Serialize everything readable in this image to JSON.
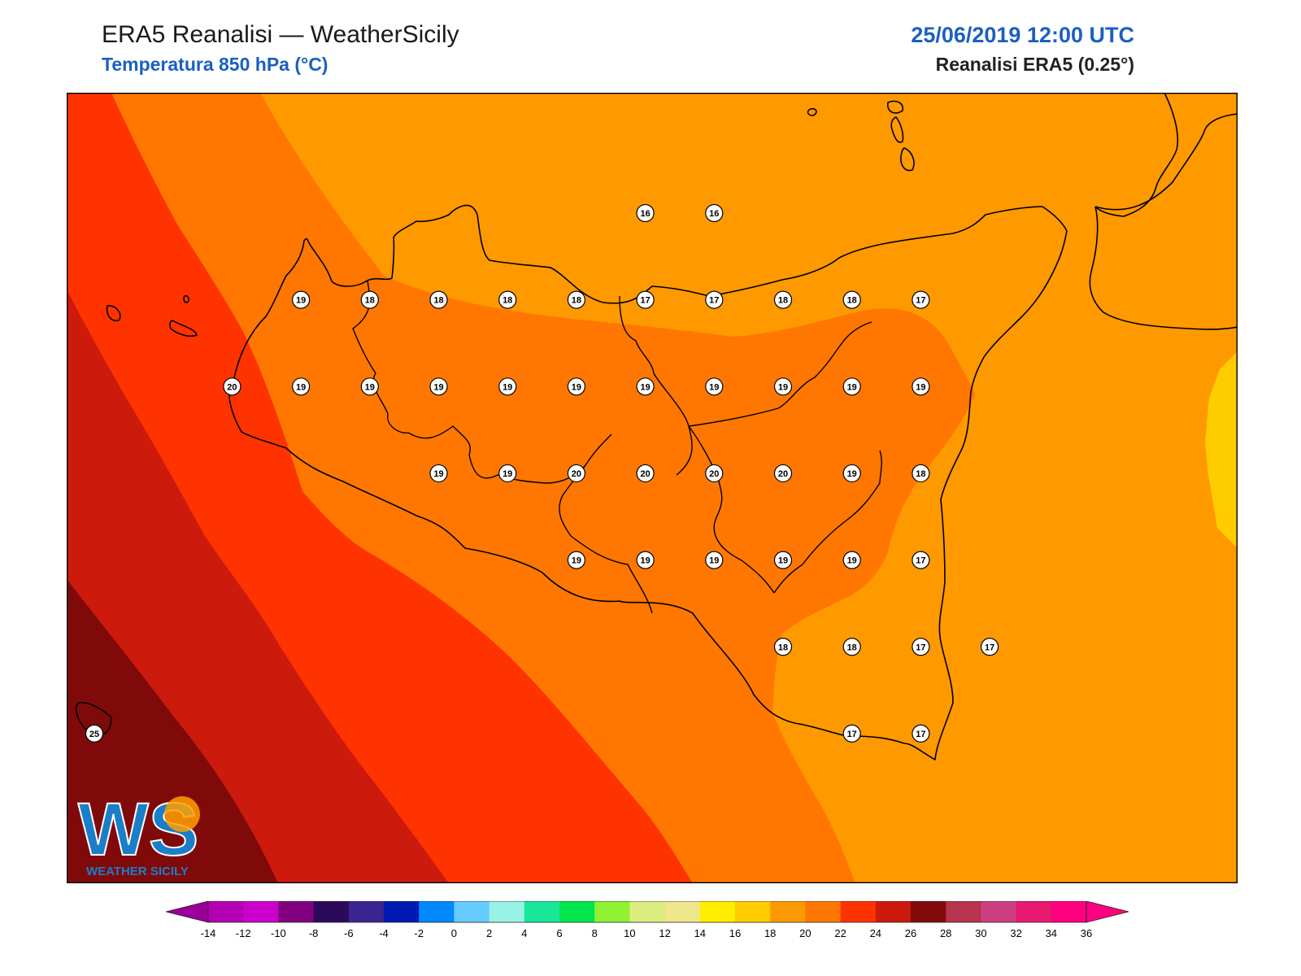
{
  "header": {
    "title": "ERA5 Reanalisi — WeatherSicily",
    "subtitle": "Temperatura 850 hPa (°C)",
    "datetime": "25/06/2019 12:00 UTC",
    "model": "Reanalisi ERA5 (0.25°)"
  },
  "logo": {
    "text_main": "WS",
    "text_sub": "WEATHER SICILY"
  },
  "legend": {
    "ticks": [
      "-14",
      "-12",
      "-10",
      "-8",
      "-6",
      "-4",
      "-2",
      "0",
      "2",
      "4",
      "6",
      "8",
      "10",
      "12",
      "14",
      "16",
      "18",
      "20",
      "22",
      "24",
      "26",
      "28",
      "30",
      "32",
      "34",
      "36"
    ],
    "colors": [
      "#b300b3",
      "#cc00cc",
      "#800080",
      "#2b0a5c",
      "#3a2490",
      "#0019b0",
      "#0088ff",
      "#66ccff",
      "#99f2e6",
      "#19e699",
      "#00e64d",
      "#8ff233",
      "#dced80",
      "#f0e68c",
      "#ffee00",
      "#ffcc00",
      "#ff9900",
      "#ff7700",
      "#ff3300",
      "#cc1a0d",
      "#800a0a",
      "#b8334d",
      "#cc4080",
      "#e6196e",
      "#ff0080"
    ],
    "under_color": "#990099",
    "over_color": "#ff0080"
  },
  "field_colors": {
    "c16": "#ffcc00",
    "c17": "#ff9900",
    "c18": "#ff7700",
    "c20": "#ff3300",
    "c22": "#cc1a0d",
    "c24": "#800a0a"
  },
  "stations": [
    {
      "v": "16",
      "lon": 15.08,
      "lat": 38.5
    },
    {
      "v": "16",
      "lon": 15.58,
      "lat": 38.5
    },
    {
      "v": "19",
      "lon": 12.58,
      "lat": 38.0
    },
    {
      "v": "18",
      "lon": 13.08,
      "lat": 38.0
    },
    {
      "v": "18",
      "lon": 13.58,
      "lat": 38.0
    },
    {
      "v": "18",
      "lon": 14.08,
      "lat": 38.0
    },
    {
      "v": "18",
      "lon": 14.58,
      "lat": 38.0
    },
    {
      "v": "17",
      "lon": 15.08,
      "lat": 38.0
    },
    {
      "v": "17",
      "lon": 15.58,
      "lat": 38.0
    },
    {
      "v": "18",
      "lon": 16.08,
      "lat": 38.0
    },
    {
      "v": "18",
      "lon": 16.58,
      "lat": 38.0
    },
    {
      "v": "17",
      "lon": 17.08,
      "lat": 38.0
    },
    {
      "v": "20",
      "lon": 12.08,
      "lat": 37.5
    },
    {
      "v": "19",
      "lon": 12.58,
      "lat": 37.5
    },
    {
      "v": "19",
      "lon": 13.08,
      "lat": 37.5
    },
    {
      "v": "19",
      "lon": 13.58,
      "lat": 37.5
    },
    {
      "v": "19",
      "lon": 14.08,
      "lat": 37.5
    },
    {
      "v": "19",
      "lon": 14.58,
      "lat": 37.5
    },
    {
      "v": "19",
      "lon": 15.08,
      "lat": 37.5
    },
    {
      "v": "19",
      "lon": 15.58,
      "lat": 37.5
    },
    {
      "v": "19",
      "lon": 16.08,
      "lat": 37.5
    },
    {
      "v": "19",
      "lon": 16.58,
      "lat": 37.5
    },
    {
      "v": "19",
      "lon": 17.08,
      "lat": 37.5
    },
    {
      "v": "19",
      "lon": 13.58,
      "lat": 37.0
    },
    {
      "v": "19",
      "lon": 14.08,
      "lat": 37.0
    },
    {
      "v": "20",
      "lon": 14.58,
      "lat": 37.0
    },
    {
      "v": "20",
      "lon": 15.08,
      "lat": 37.0
    },
    {
      "v": "20",
      "lon": 15.58,
      "lat": 37.0
    },
    {
      "v": "20",
      "lon": 16.08,
      "lat": 37.0
    },
    {
      "v": "19",
      "lon": 16.58,
      "lat": 37.0
    },
    {
      "v": "18",
      "lon": 17.08,
      "lat": 37.0
    },
    {
      "v": "19",
      "lon": 14.58,
      "lat": 36.5
    },
    {
      "v": "19",
      "lon": 15.08,
      "lat": 36.5
    },
    {
      "v": "19",
      "lon": 15.58,
      "lat": 36.5
    },
    {
      "v": "19",
      "lon": 16.08,
      "lat": 36.5
    },
    {
      "v": "19",
      "lon": 16.58,
      "lat": 36.5
    },
    {
      "v": "17",
      "lon": 17.08,
      "lat": 36.5
    },
    {
      "v": "18",
      "lon": 16.08,
      "lat": 36.0
    },
    {
      "v": "18",
      "lon": 16.58,
      "lat": 36.0
    },
    {
      "v": "17",
      "lon": 17.08,
      "lat": 36.0
    },
    {
      "v": "17",
      "lon": 17.58,
      "lat": 36.0
    },
    {
      "v": "17",
      "lon": 16.58,
      "lat": 35.5
    },
    {
      "v": "17",
      "lon": 17.08,
      "lat": 35.5
    },
    {
      "v": "25",
      "lon": 11.08,
      "lat": 35.5
    }
  ]
}
